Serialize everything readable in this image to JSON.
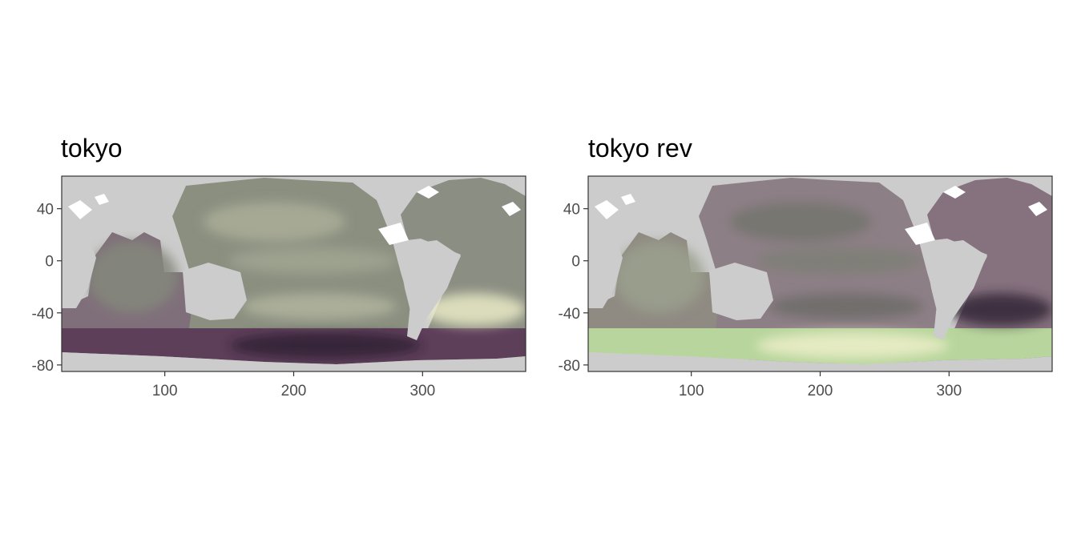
{
  "chart_data": [
    {
      "type": "heatmap",
      "title": "tokyo",
      "subtitle": "",
      "xlabel": "",
      "ylabel": "",
      "xlim": [
        20,
        380
      ],
      "ylim": [
        -85,
        65
      ],
      "x_ticks": [
        100,
        200,
        300
      ],
      "y_ticks": [
        40,
        0,
        -40,
        -80
      ],
      "x_tick_labels": [
        "100",
        "200",
        "300"
      ],
      "y_tick_labels": [
        "40",
        "0",
        "-40",
        "-80"
      ],
      "grid": false,
      "legend": "none",
      "colors": {
        "land": "#cccccc",
        "missing": "#ffffff",
        "scale_low": "#1c0a22",
        "scale_mid": "#8f9585",
        "scale_high": "#ffffd6"
      },
      "regions": [
        {
          "name": "north-pacific-subtropical",
          "x": [
            130,
            240
          ],
          "y": [
            15,
            45
          ],
          "level": 0.62
        },
        {
          "name": "equatorial-pacific",
          "x": [
            150,
            280
          ],
          "y": [
            -10,
            10
          ],
          "level": 0.58
        },
        {
          "name": "south-pacific-band",
          "x": [
            160,
            280
          ],
          "y": [
            -45,
            -25
          ],
          "level": 0.65
        },
        {
          "name": "south-atlantic-bright",
          "x": [
            300,
            380
          ],
          "y": [
            -50,
            -25
          ],
          "level": 0.9
        },
        {
          "name": "southern-ocean-dark",
          "x": [
            150,
            300
          ],
          "y": [
            -75,
            -55
          ],
          "level": 0.08
        },
        {
          "name": "indian-ocean",
          "x": [
            40,
            110
          ],
          "y": [
            -40,
            15
          ],
          "level": 0.45
        }
      ]
    },
    {
      "type": "heatmap",
      "title": "tokyo rev",
      "subtitle": "",
      "xlabel": "",
      "ylabel": "",
      "xlim": [
        20,
        380
      ],
      "ylim": [
        -85,
        65
      ],
      "x_ticks": [
        100,
        200,
        300
      ],
      "y_ticks": [
        40,
        0,
        -40,
        -80
      ],
      "x_tick_labels": [
        "100",
        "200",
        "300"
      ],
      "y_tick_labels": [
        "40",
        "0",
        "-40",
        "-80"
      ],
      "grid": false,
      "legend": "none",
      "colors": {
        "land": "#cccccc",
        "missing": "#ffffff",
        "scale_low": "#1c0a22",
        "scale_mid": "#8f9585",
        "scale_high": "#ffffd6"
      },
      "regions": [
        {
          "name": "north-pacific-subtropical",
          "x": [
            130,
            240
          ],
          "y": [
            15,
            45
          ],
          "level": 0.38
        },
        {
          "name": "equatorial-pacific",
          "x": [
            150,
            280
          ],
          "y": [
            -10,
            10
          ],
          "level": 0.42
        },
        {
          "name": "south-pacific-band",
          "x": [
            160,
            280
          ],
          "y": [
            -45,
            -25
          ],
          "level": 0.35
        },
        {
          "name": "south-atlantic-dark",
          "x": [
            300,
            380
          ],
          "y": [
            -50,
            -25
          ],
          "level": 0.1
        },
        {
          "name": "southern-ocean-bright",
          "x": [
            150,
            300
          ],
          "y": [
            -75,
            -55
          ],
          "level": 0.92
        },
        {
          "name": "indian-ocean",
          "x": [
            40,
            110
          ],
          "y": [
            -40,
            15
          ],
          "level": 0.55
        }
      ]
    }
  ]
}
